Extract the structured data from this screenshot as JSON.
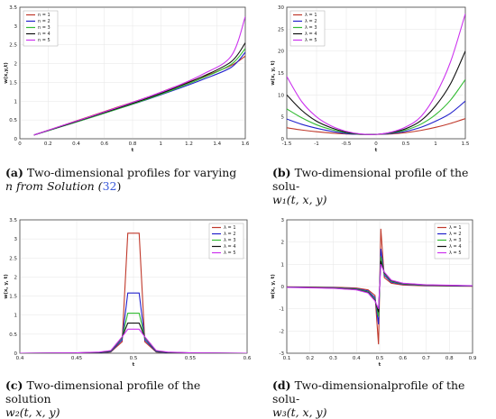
{
  "captions": {
    "a": {
      "label": "(a)",
      "line1": "Two-dimensional profiles for varying",
      "line2_pre": "n from Solution (",
      "line2_ref": "32",
      "line2_post": ")"
    },
    "b": {
      "label": "(b)",
      "line1": "Two-dimensional profile of the solu-",
      "line2": "w₁(t, x, y)"
    },
    "c": {
      "label": "(c)",
      "line1": "Two-dimensional profile of the solution",
      "line2": "w₂(t, x, y)"
    },
    "d": {
      "label": "(d)",
      "line1": "Two-dimensionalprofile of the solu-",
      "line2": "w₃(t, x, y)"
    }
  },
  "colors": [
    "#c0392b",
    "#2222cc",
    "#33bb33",
    "#111111",
    "#cc33ee"
  ],
  "chart_data": [
    {
      "id": "a",
      "type": "line",
      "xlabel": "t",
      "ylabel": "w(x,y,t)",
      "xlim": [
        0,
        1.6
      ],
      "ylim": [
        0,
        3.5
      ],
      "xticks": [
        "0",
        "0.2",
        "0.4",
        "0.6",
        "0.8",
        "1",
        "1.2",
        "1.4",
        "1.6"
      ],
      "yticks": [
        "0",
        "0.5",
        "1",
        "1.5",
        "2",
        "2.5",
        "3",
        "3.5"
      ],
      "legend_position": "top-left",
      "legend": [
        "n = 1",
        "n = 2",
        "n = 3",
        "n = 4",
        "n = 5"
      ],
      "x": [
        0.1,
        0.3,
        0.5,
        0.7,
        0.9,
        1.1,
        1.3,
        1.5,
        1.6
      ],
      "series": [
        {
          "name": "n = 1",
          "values": [
            0.1,
            0.35,
            0.6,
            0.85,
            1.1,
            1.38,
            1.65,
            1.95,
            2.2
          ]
        },
        {
          "name": "n = 2",
          "values": [
            0.1,
            0.33,
            0.56,
            0.8,
            1.04,
            1.3,
            1.58,
            1.9,
            2.3
          ]
        },
        {
          "name": "n = 3",
          "values": [
            0.1,
            0.33,
            0.56,
            0.8,
            1.05,
            1.32,
            1.62,
            1.98,
            2.4
          ]
        },
        {
          "name": "n = 4",
          "values": [
            0.1,
            0.34,
            0.58,
            0.82,
            1.07,
            1.35,
            1.66,
            2.05,
            2.55
          ]
        },
        {
          "name": "n = 5",
          "values": [
            0.1,
            0.35,
            0.59,
            0.84,
            1.1,
            1.38,
            1.72,
            2.2,
            3.25
          ]
        }
      ]
    },
    {
      "id": "b",
      "type": "line",
      "xlabel": "t",
      "ylabel": "w(x, y, t)",
      "xlim": [
        -1.5,
        1.5
      ],
      "ylim": [
        0,
        30
      ],
      "xticks": [
        "-1.5",
        "-1",
        "-0.5",
        "0",
        "0.5",
        "1",
        "1.5"
      ],
      "yticks": [
        "0",
        "5",
        "10",
        "15",
        "20",
        "25",
        "30"
      ],
      "legend_position": "top-left",
      "legend": [
        "λ = 1",
        "λ = 2",
        "λ = 3",
        "λ = 4",
        "λ = 5"
      ],
      "x": [
        -1.5,
        -1.25,
        -1,
        -0.75,
        -0.5,
        -0.25,
        0,
        0.25,
        0.5,
        0.75,
        1,
        1.25,
        1.5
      ],
      "series": [
        {
          "name": "λ = 1",
          "values": [
            2.5,
            2.0,
            1.6,
            1.3,
            1.1,
            1.0,
            1.0,
            1.1,
            1.4,
            1.9,
            2.6,
            3.5,
            4.6
          ]
        },
        {
          "name": "λ = 2",
          "values": [
            4.5,
            3.3,
            2.4,
            1.7,
            1.2,
            1.0,
            1.0,
            1.2,
            1.7,
            2.6,
            4.0,
            5.8,
            8.6
          ]
        },
        {
          "name": "λ = 3",
          "values": [
            6.8,
            4.8,
            3.2,
            2.1,
            1.4,
            1.0,
            1.0,
            1.3,
            2.0,
            3.3,
            5.5,
            8.8,
            13.5
          ]
        },
        {
          "name": "λ = 4",
          "values": [
            10.0,
            6.5,
            4.0,
            2.5,
            1.5,
            1.05,
            1.0,
            1.4,
            2.3,
            4.1,
            7.5,
            12.5,
            20.0
          ]
        },
        {
          "name": "λ = 5",
          "values": [
            14.2,
            8.5,
            5.0,
            2.9,
            1.7,
            1.1,
            1.0,
            1.5,
            2.7,
            5.0,
            10.0,
            17.5,
            28.5
          ]
        }
      ]
    },
    {
      "id": "c",
      "type": "line",
      "xlabel": "t",
      "ylabel": "w(x, y, t)",
      "xlim": [
        0.4,
        0.6
      ],
      "ylim": [
        0,
        3.5
      ],
      "xticks": [
        "0.4",
        "0.45",
        "0.5",
        "0.55",
        "0.6"
      ],
      "yticks": [
        "0",
        "0.5",
        "1",
        "1.5",
        "2",
        "2.5",
        "3",
        "3.5"
      ],
      "legend_position": "top-right",
      "legend": [
        "λ = 1",
        "λ = 2",
        "λ = 3",
        "λ = 4",
        "λ = 5"
      ],
      "x": [
        0.4,
        0.45,
        0.47,
        0.48,
        0.49,
        0.495,
        0.505,
        0.51,
        0.52,
        0.53,
        0.55,
        0.6
      ],
      "series": [
        {
          "name": "λ = 1",
          "values": [
            0.0,
            0.0,
            0.01,
            0.03,
            0.3,
            3.15,
            3.15,
            0.3,
            0.03,
            0.01,
            0.0,
            0.0
          ]
        },
        {
          "name": "λ = 2",
          "values": [
            0.0,
            0.0,
            0.01,
            0.04,
            0.35,
            1.58,
            1.58,
            0.35,
            0.04,
            0.01,
            0.0,
            0.0
          ]
        },
        {
          "name": "λ = 3",
          "values": [
            0.0,
            0.01,
            0.02,
            0.05,
            0.4,
            1.05,
            1.05,
            0.4,
            0.05,
            0.02,
            0.01,
            0.0
          ]
        },
        {
          "name": "λ = 4",
          "values": [
            0.0,
            0.01,
            0.02,
            0.06,
            0.42,
            0.79,
            0.79,
            0.42,
            0.06,
            0.02,
            0.01,
            0.0
          ]
        },
        {
          "name": "λ = 5",
          "values": [
            0.0,
            0.01,
            0.03,
            0.07,
            0.43,
            0.63,
            0.63,
            0.43,
            0.07,
            0.03,
            0.01,
            0.0
          ]
        }
      ]
    },
    {
      "id": "d",
      "type": "line",
      "xlabel": "t",
      "ylabel": "w(x, y, t)",
      "xlim": [
        0.1,
        0.9
      ],
      "ylim": [
        -3,
        3
      ],
      "xticks": [
        "0.1",
        "0.2",
        "0.3",
        "0.4",
        "0.5",
        "0.6",
        "0.7",
        "0.8",
        "0.9"
      ],
      "yticks": [
        "-3",
        "-2",
        "-1",
        "0",
        "1",
        "2",
        "3"
      ],
      "legend_position": "top-right",
      "legend": [
        "λ = 1",
        "λ = 2",
        "λ = 3",
        "λ = 4",
        "λ = 5"
      ],
      "x": [
        0.1,
        0.3,
        0.4,
        0.45,
        0.48,
        0.495,
        0.505,
        0.52,
        0.55,
        0.6,
        0.7,
        0.9
      ],
      "series": [
        {
          "name": "λ = 1",
          "values": [
            -0.01,
            -0.03,
            -0.07,
            -0.15,
            -0.4,
            -2.6,
            2.6,
            0.4,
            0.15,
            0.07,
            0.03,
            0.01
          ]
        },
        {
          "name": "λ = 2",
          "values": [
            -0.02,
            -0.05,
            -0.1,
            -0.2,
            -0.5,
            -1.7,
            1.7,
            0.5,
            0.2,
            0.1,
            0.05,
            0.02
          ]
        },
        {
          "name": "λ = 3",
          "values": [
            -0.03,
            -0.06,
            -0.12,
            -0.24,
            -0.58,
            -1.35,
            1.35,
            0.58,
            0.24,
            0.12,
            0.06,
            0.03
          ]
        },
        {
          "name": "λ = 4",
          "values": [
            -0.03,
            -0.07,
            -0.14,
            -0.27,
            -0.62,
            -1.15,
            1.15,
            0.62,
            0.27,
            0.14,
            0.07,
            0.03
          ]
        },
        {
          "name": "λ = 5",
          "values": [
            -0.04,
            -0.08,
            -0.15,
            -0.29,
            -0.65,
            -1.0,
            1.0,
            0.65,
            0.29,
            0.15,
            0.08,
            0.04
          ]
        }
      ]
    }
  ]
}
